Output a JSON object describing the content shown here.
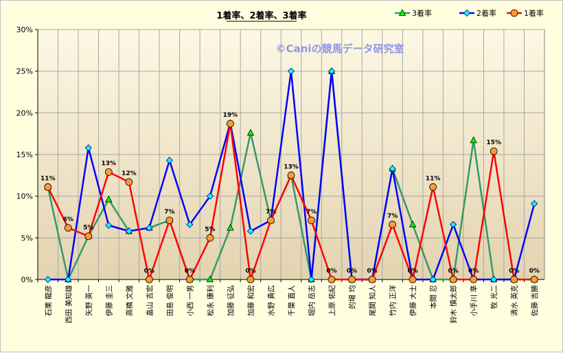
{
  "chart_data": {
    "type": "line",
    "title": "1着率、2着率、3着率",
    "watermark": "©Caniの競馬データ研究室",
    "ylim": [
      0,
      30
    ],
    "yticks": [
      "0%",
      "5%",
      "10%",
      "15%",
      "20%",
      "25%",
      "30%"
    ],
    "ytick_values": [
      0,
      5,
      10,
      15,
      20,
      25,
      30
    ],
    "grid": true,
    "legend_position": "top-right",
    "categories": [
      "石栗 龍彦",
      "西田 美知雄",
      "矢野 英一",
      "伊藤 圭三",
      "高橋 文雅",
      "畠山 吉宏",
      "田島 俊明",
      "小西 一男",
      "松永 康利",
      "加藤 征弘",
      "加藤 和宏",
      "水野 貴広",
      "千葉 直人",
      "堀内 岳志",
      "上原 佑紀",
      "的場 均",
      "尾関 知人",
      "竹内 正洋",
      "伊藤 大士",
      "本間 忍",
      "鈴木 慎太郎",
      "小手川 準",
      "牧 光二",
      "清水 英克",
      "佐藤 吉勝"
    ],
    "series": [
      {
        "name": "3着率",
        "color": "#339966",
        "marker": "triangle",
        "values": [
          11.1,
          0,
          5.2,
          9.6,
          5.8,
          6.2,
          7.1,
          0,
          0,
          6.2,
          17.6,
          7.1,
          12.5,
          0,
          25.0,
          0,
          0,
          13.3,
          6.6,
          0,
          0,
          16.7,
          0,
          0,
          0
        ]
      },
      {
        "name": "2着率",
        "color": "#0000ff",
        "marker": "diamond",
        "values": [
          0,
          0,
          15.8,
          6.5,
          5.8,
          6.2,
          14.3,
          6.6,
          10.0,
          18.8,
          5.8,
          7.1,
          25.0,
          0,
          25.0,
          0,
          0,
          13.3,
          0,
          0,
          6.6,
          0,
          0,
          0,
          9.1
        ]
      },
      {
        "name": "1着率",
        "color": "#ff0000",
        "marker": "circle",
        "values": [
          11.1,
          6.2,
          5.2,
          12.9,
          11.7,
          0,
          7.1,
          0,
          5.0,
          18.7,
          0,
          7.1,
          12.5,
          7.1,
          0,
          0,
          0,
          6.6,
          0,
          11.1,
          0,
          0,
          15.4,
          0,
          0
        ],
        "data_labels": [
          "11%",
          "6%",
          "5%",
          "13%",
          "12%",
          "0%",
          "7%",
          "0%",
          "5%",
          "19%",
          "0%",
          "7%",
          "13%",
          "7%",
          "0%",
          "0%",
          "0%",
          "7%",
          "0%",
          "11%",
          "0%",
          "0%",
          "15%",
          "0%",
          "0%"
        ]
      }
    ]
  },
  "colors": {
    "page_bg": "#ffffe0",
    "plot_top": "#fdf8e4",
    "plot_bottom": "#e3d3b0",
    "grid": "#a6a6a6",
    "axis": "#808080"
  }
}
